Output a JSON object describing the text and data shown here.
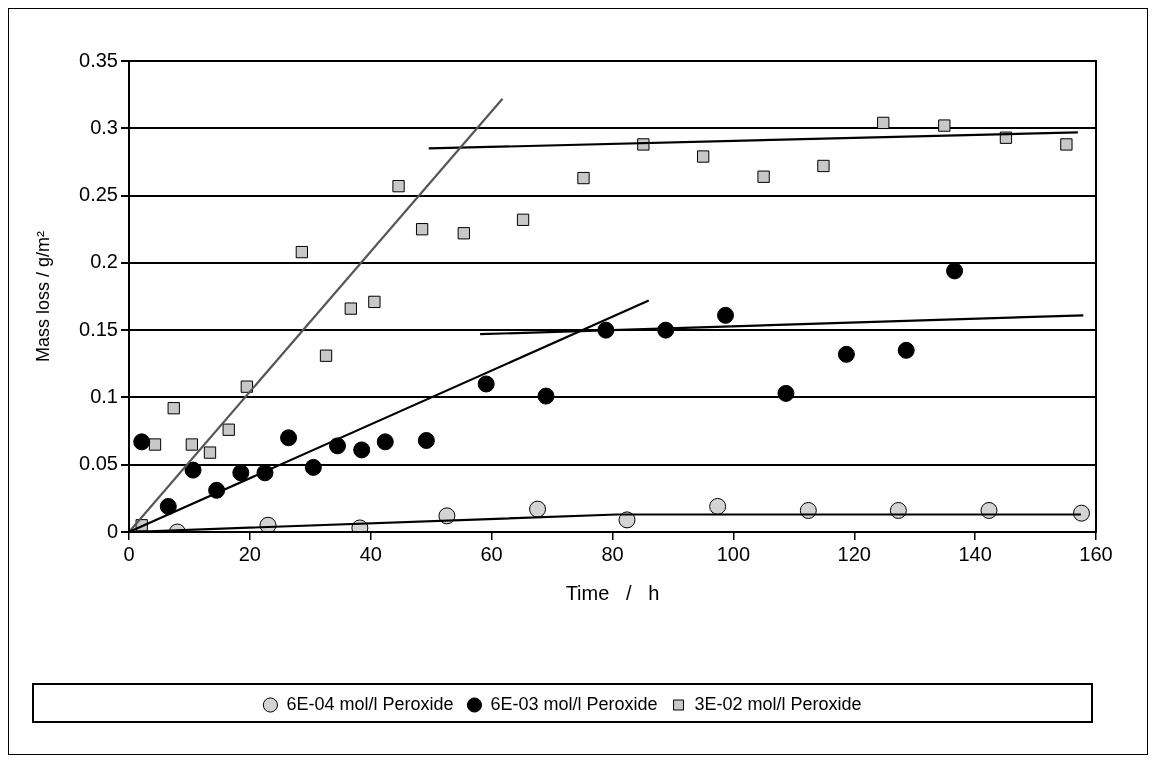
{
  "chart_data": {
    "type": "scatter",
    "xlabel": "Time   /   h",
    "ylabel": "Mass loss / g/m²",
    "xlim": [
      0,
      160
    ],
    "xticks": [
      0,
      20,
      40,
      60,
      80,
      100,
      120,
      140,
      160
    ],
    "ylim": [
      0,
      0.35
    ],
    "yticks": [
      0,
      0.05,
      0.1,
      0.15,
      0.2,
      0.25,
      0.3,
      0.35
    ],
    "grid": "y",
    "legend": "bottom",
    "series": [
      {
        "name": "6E-04 mol/l Peroxide",
        "color": "#d4d4d4",
        "marker": "circle",
        "x": [
          8.0,
          23.0,
          38.2,
          52.6,
          67.6,
          82.4,
          97.4,
          112.4,
          127.3,
          142.3,
          157.6
        ],
        "values": [
          0.0,
          0.005,
          0.003,
          0.012,
          0.017,
          0.009,
          0.019,
          0.016,
          0.016,
          0.016,
          0.014
        ]
      },
      {
        "name": "6E-03 mol/l Peroxide",
        "color": "#000000",
        "marker": "circle",
        "x": [
          2.1,
          6.5,
          10.6,
          14.5,
          18.5,
          22.5,
          26.4,
          30.5,
          34.5,
          38.5,
          42.4,
          49.2,
          59.1,
          69.0,
          78.9,
          88.8,
          98.7,
          108.7,
          118.7,
          128.6,
          136.6
        ],
        "values": [
          0.067,
          0.019,
          0.046,
          0.031,
          0.044,
          0.044,
          0.07,
          0.048,
          0.064,
          0.061,
          0.067,
          0.068,
          0.11,
          0.101,
          0.15,
          0.15,
          0.161,
          0.103,
          0.132,
          0.135,
          0.194
        ]
      },
      {
        "name": "3E-02 mol/l Peroxide",
        "color": "#c8c8c8",
        "marker": "square",
        "x": [
          2.1,
          4.3,
          7.4,
          10.4,
          13.4,
          16.5,
          19.5,
          28.6,
          32.6,
          36.7,
          40.6,
          44.6,
          48.5,
          55.4,
          65.2,
          75.2,
          85.1,
          95.0,
          105.0,
          114.9,
          124.8,
          134.9,
          145.1,
          155.1
        ],
        "values": [
          0.005,
          0.065,
          0.092,
          0.065,
          0.059,
          0.076,
          0.108,
          0.208,
          0.131,
          0.166,
          0.171,
          0.257,
          0.225,
          0.222,
          0.232,
          0.263,
          0.288,
          0.279,
          0.264,
          0.272,
          0.304,
          0.302,
          0.293,
          0.288
        ]
      },
      {
        "type": "line",
        "color": "#000000",
        "marker": "none",
        "x": [
          0,
          80.7,
          157.5
        ],
        "values": [
          0,
          0.013,
          0.013
        ]
      },
      {
        "type": "line",
        "color": "#000000",
        "marker": "none",
        "x": [
          0,
          86
        ],
        "values": [
          0,
          0.172
        ]
      },
      {
        "type": "line",
        "color": "#000000",
        "marker": "none",
        "x": [
          58.1,
          157.9
        ],
        "values": [
          0.147,
          0.161
        ]
      },
      {
        "type": "line",
        "color": "#555555",
        "marker": "none",
        "x": [
          0,
          61.8
        ],
        "values": [
          0,
          0.322
        ]
      },
      {
        "type": "line",
        "color": "#000000",
        "marker": "none",
        "x": [
          49.6,
          157
        ],
        "values": [
          0.285,
          0.297
        ]
      }
    ]
  }
}
